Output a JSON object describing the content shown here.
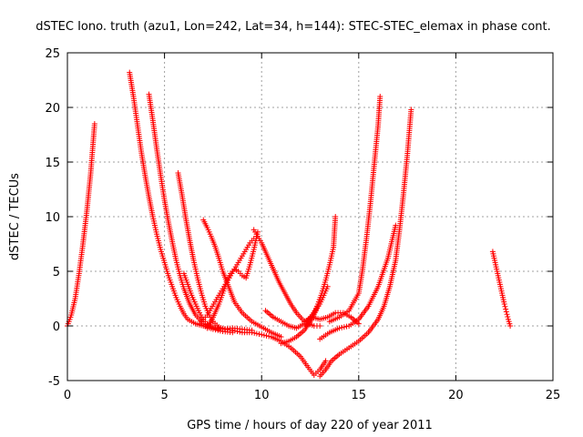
{
  "chart_data": {
    "type": "scatter",
    "title": "dSTEC Iono. truth (azu1, Lon=242, Lat=34, h=144): STEC-STEC_elemax in phase cont.",
    "xlabel": "GPS time / hours of day 220 of year 2011",
    "ylabel": "dSTEC  / TECUs",
    "xlim": [
      0,
      25
    ],
    "ylim": [
      -5,
      25
    ],
    "xticks": [
      "0",
      "5",
      "10",
      "15",
      "20",
      "25"
    ],
    "yticks": [
      "-5",
      "0",
      "5",
      "10",
      "15",
      "20",
      "25"
    ],
    "grid": true,
    "marker": "+",
    "color": "#ff0000",
    "series": [
      {
        "x": [
          0.0,
          0.2,
          0.4,
          0.6,
          0.8,
          1.0,
          1.2,
          1.4
        ],
        "y": [
          0.0,
          1.0,
          2.5,
          4.8,
          7.5,
          10.5,
          14.0,
          18.5
        ]
      },
      {
        "x": [
          3.2,
          3.4,
          3.6,
          3.8,
          4.0,
          4.2,
          4.4,
          4.6,
          4.8,
          5.0,
          5.2,
          5.4,
          5.6,
          5.8,
          6.0,
          6.2,
          6.6,
          7.0,
          7.5,
          8.0,
          8.5
        ],
        "y": [
          23.2,
          21.0,
          18.5,
          16.0,
          13.8,
          11.8,
          10.0,
          8.4,
          7.0,
          5.8,
          4.6,
          3.6,
          2.6,
          1.8,
          1.1,
          0.6,
          0.2,
          0.0,
          -0.3,
          -0.5,
          -0.6
        ]
      },
      {
        "x": [
          4.2,
          4.4,
          4.6,
          4.8,
          5.0,
          5.2,
          5.4,
          5.6,
          5.8,
          6.0,
          6.3,
          6.6,
          7.0,
          7.5,
          8.0,
          8.5,
          9.0,
          9.5
        ],
        "y": [
          21.2,
          18.8,
          16.2,
          13.8,
          11.5,
          9.5,
          7.7,
          6.0,
          4.6,
          3.4,
          2.0,
          1.0,
          0.2,
          -0.2,
          -0.3,
          -0.2,
          -0.3,
          -0.4
        ]
      },
      {
        "x": [
          5.7,
          5.9,
          6.1,
          6.3,
          6.5,
          6.7,
          6.9,
          7.1,
          7.3,
          7.5,
          7.8,
          8.1,
          8.5
        ],
        "y": [
          14.0,
          12.0,
          9.8,
          7.8,
          6.0,
          4.4,
          3.0,
          1.8,
          1.0,
          0.4,
          -0.1,
          -0.3,
          -0.4
        ]
      },
      {
        "x": [
          6.0,
          6.2,
          6.4,
          6.6,
          6.8,
          7.0,
          7.2,
          7.4,
          7.6,
          7.8
        ],
        "y": [
          4.8,
          3.8,
          2.8,
          2.0,
          1.2,
          0.6,
          0.2,
          0.0,
          -0.2,
          -0.3
        ]
      },
      {
        "x": [
          7.0,
          7.2,
          7.4,
          7.6,
          7.8,
          8.0,
          8.3,
          8.6,
          9.0,
          9.5,
          10.0,
          10.5,
          11.0
        ],
        "y": [
          9.7,
          9.0,
          8.2,
          7.3,
          6.2,
          5.0,
          3.6,
          2.2,
          1.2,
          0.4,
          -0.1,
          -0.6,
          -1.0
        ]
      },
      {
        "x": [
          6.8,
          7.0,
          7.2,
          7.4,
          7.6,
          7.8,
          8.0,
          8.2,
          8.4,
          8.6,
          8.8,
          9.0,
          9.2,
          9.4,
          9.6
        ],
        "y": [
          0.2,
          0.6,
          1.0,
          1.6,
          2.2,
          2.8,
          3.4,
          4.0,
          4.6,
          5.2,
          5.8,
          6.4,
          7.0,
          7.6,
          8.0
        ]
      },
      {
        "x": [
          7.2,
          7.5,
          7.8,
          8.0,
          8.2,
          8.4,
          8.6,
          8.8,
          9.0,
          9.2,
          9.4,
          9.6,
          9.8
        ],
        "y": [
          -0.2,
          0.8,
          2.0,
          3.0,
          4.0,
          4.8,
          5.2,
          5.0,
          4.6,
          4.4,
          5.6,
          7.0,
          8.6
        ]
      },
      {
        "x": [
          9.6,
          9.8,
          10.0,
          10.3,
          10.6,
          10.9,
          11.2,
          11.5,
          11.8,
          12.1,
          12.4,
          12.7,
          13.0
        ],
        "y": [
          8.8,
          8.2,
          7.6,
          6.4,
          5.2,
          4.0,
          3.0,
          2.0,
          1.2,
          0.6,
          0.2,
          0.0,
          0.0
        ]
      },
      {
        "x": [
          8.5,
          9.0,
          9.5,
          10.0,
          10.5,
          11.0,
          11.5,
          12.0,
          12.4,
          12.7,
          13.0,
          13.3
        ],
        "y": [
          -0.4,
          -0.6,
          -0.6,
          -0.8,
          -1.0,
          -1.4,
          -2.0,
          -2.8,
          -3.8,
          -4.5,
          -4.0,
          -3.2
        ]
      },
      {
        "x": [
          10.2,
          10.6,
          11.0,
          11.4,
          11.8,
          12.2,
          12.6,
          13.0,
          13.2,
          13.4
        ],
        "y": [
          1.4,
          0.8,
          0.4,
          0.0,
          -0.2,
          0.2,
          1.0,
          2.0,
          2.8,
          3.6
        ]
      },
      {
        "x": [
          11.0,
          11.4,
          11.8,
          12.2,
          12.5,
          12.8,
          13.0
        ],
        "y": [
          -1.6,
          -1.4,
          -1.0,
          -0.4,
          0.4,
          1.4,
          2.4
        ]
      },
      {
        "x": [
          12.3,
          12.5,
          12.7,
          12.9,
          13.1,
          13.3,
          13.5,
          13.7,
          13.8
        ],
        "y": [
          0.0,
          0.5,
          1.2,
          2.0,
          3.0,
          4.2,
          5.6,
          7.2,
          10.0
        ]
      },
      {
        "x": [
          13.0,
          13.3,
          13.6,
          14.0,
          14.5,
          15.0,
          15.5,
          16.0,
          16.3,
          16.6,
          16.9,
          17.1,
          17.3,
          17.5,
          17.7
        ],
        "y": [
          -4.6,
          -4.0,
          -3.2,
          -2.6,
          -2.0,
          -1.4,
          -0.6,
          0.6,
          1.8,
          3.6,
          6.0,
          8.8,
          12.0,
          15.6,
          19.8
        ]
      },
      {
        "x": [
          13.5,
          14.0,
          14.5,
          15.0,
          15.2,
          15.4,
          15.6,
          15.8,
          16.0,
          16.1
        ],
        "y": [
          0.4,
          0.8,
          1.4,
          3.0,
          5.2,
          8.0,
          11.2,
          14.8,
          18.4,
          21.0
        ]
      },
      {
        "x": [
          13.0,
          13.5,
          14.0,
          14.5,
          15.0,
          15.5,
          16.0,
          16.5,
          16.9
        ],
        "y": [
          -1.2,
          -0.6,
          -0.2,
          0.0,
          0.6,
          1.8,
          3.6,
          6.2,
          9.2
        ]
      },
      {
        "x": [
          12.2,
          12.6,
          13.0,
          13.4,
          13.8,
          14.2,
          14.6,
          15.0
        ],
        "y": [
          0.4,
          0.8,
          0.6,
          0.8,
          1.2,
          1.2,
          0.8,
          0.2
        ]
      },
      {
        "x": [
          21.9,
          22.0,
          22.1,
          22.2,
          22.3,
          22.4,
          22.5,
          22.6,
          22.7,
          22.8
        ],
        "y": [
          6.8,
          6.0,
          5.2,
          4.4,
          3.6,
          2.8,
          2.0,
          1.3,
          0.6,
          0.0
        ]
      }
    ]
  }
}
